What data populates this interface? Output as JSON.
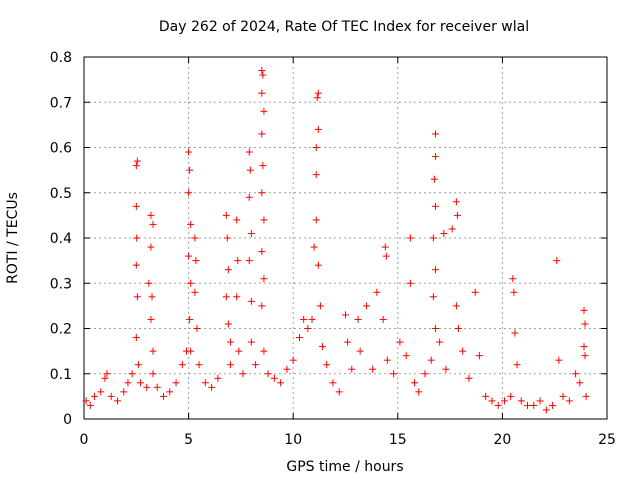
{
  "chart_data": {
    "type": "scatter",
    "title": "Day 262 of 2024, Rate Of TEC Index for receiver wlal",
    "xlabel": "GPS time / hours",
    "ylabel": "ROTI / TECUs",
    "xlim": [
      0,
      25
    ],
    "ylim": [
      0,
      0.8
    ],
    "xticks": [
      0,
      5,
      10,
      15,
      20,
      25
    ],
    "yticks": [
      0,
      0.1,
      0.2,
      0.3,
      0.4,
      0.5,
      0.6,
      0.7,
      0.8
    ],
    "grid": true,
    "marker": "+",
    "color": "#ff0000",
    "series": [
      {
        "name": "ROTI",
        "points": [
          [
            0.1,
            0.04
          ],
          [
            0.3,
            0.03
          ],
          [
            0.5,
            0.05
          ],
          [
            0.8,
            0.06
          ],
          [
            1.0,
            0.09
          ],
          [
            1.1,
            0.1
          ],
          [
            1.3,
            0.05
          ],
          [
            1.6,
            0.04
          ],
          [
            1.9,
            0.06
          ],
          [
            2.1,
            0.08
          ],
          [
            2.3,
            0.1
          ],
          [
            2.5,
            0.56
          ],
          [
            2.55,
            0.57
          ],
          [
            2.5,
            0.47
          ],
          [
            2.52,
            0.4
          ],
          [
            2.5,
            0.34
          ],
          [
            2.55,
            0.27
          ],
          [
            2.5,
            0.18
          ],
          [
            2.6,
            0.12
          ],
          [
            2.7,
            0.08
          ],
          [
            3.0,
            0.07
          ],
          [
            3.2,
            0.45
          ],
          [
            3.3,
            0.43
          ],
          [
            3.2,
            0.38
          ],
          [
            3.1,
            0.3
          ],
          [
            3.25,
            0.27
          ],
          [
            3.2,
            0.22
          ],
          [
            3.3,
            0.15
          ],
          [
            3.3,
            0.1
          ],
          [
            3.5,
            0.07
          ],
          [
            3.8,
            0.05
          ],
          [
            4.1,
            0.06
          ],
          [
            4.4,
            0.08
          ],
          [
            4.7,
            0.12
          ],
          [
            4.9,
            0.15
          ],
          [
            5.0,
            0.59
          ],
          [
            5.05,
            0.55
          ],
          [
            5.0,
            0.5
          ],
          [
            5.1,
            0.43
          ],
          [
            5.0,
            0.36
          ],
          [
            5.1,
            0.3
          ],
          [
            5.05,
            0.22
          ],
          [
            5.1,
            0.15
          ],
          [
            5.3,
            0.4
          ],
          [
            5.35,
            0.35
          ],
          [
            5.3,
            0.28
          ],
          [
            5.4,
            0.2
          ],
          [
            5.5,
            0.12
          ],
          [
            5.8,
            0.08
          ],
          [
            6.1,
            0.07
          ],
          [
            6.4,
            0.09
          ],
          [
            6.8,
            0.45
          ],
          [
            6.85,
            0.4
          ],
          [
            6.9,
            0.33
          ],
          [
            6.8,
            0.27
          ],
          [
            6.9,
            0.21
          ],
          [
            7.0,
            0.17
          ],
          [
            7.0,
            0.12
          ],
          [
            7.3,
            0.44
          ],
          [
            7.35,
            0.35
          ],
          [
            7.3,
            0.27
          ],
          [
            7.4,
            0.15
          ],
          [
            7.6,
            0.1
          ],
          [
            7.9,
            0.59
          ],
          [
            7.95,
            0.55
          ],
          [
            7.9,
            0.49
          ],
          [
            8.0,
            0.41
          ],
          [
            7.9,
            0.35
          ],
          [
            8.0,
            0.26
          ],
          [
            8.0,
            0.17
          ],
          [
            8.2,
            0.12
          ],
          [
            8.5,
            0.77
          ],
          [
            8.55,
            0.76
          ],
          [
            8.5,
            0.72
          ],
          [
            8.6,
            0.68
          ],
          [
            8.5,
            0.63
          ],
          [
            8.55,
            0.56
          ],
          [
            8.5,
            0.5
          ],
          [
            8.6,
            0.44
          ],
          [
            8.5,
            0.37
          ],
          [
            8.6,
            0.31
          ],
          [
            8.5,
            0.25
          ],
          [
            8.6,
            0.15
          ],
          [
            8.8,
            0.1
          ],
          [
            9.1,
            0.09
          ],
          [
            9.4,
            0.08
          ],
          [
            9.7,
            0.11
          ],
          [
            10.0,
            0.13
          ],
          [
            10.3,
            0.18
          ],
          [
            10.5,
            0.22
          ],
          [
            10.7,
            0.2
          ],
          [
            10.9,
            0.22
          ],
          [
            11.0,
            0.38
          ],
          [
            11.1,
            0.44
          ],
          [
            11.1,
            0.54
          ],
          [
            11.2,
            0.64
          ],
          [
            11.15,
            0.71
          ],
          [
            11.2,
            0.72
          ],
          [
            11.1,
            0.6
          ],
          [
            11.2,
            0.34
          ],
          [
            11.3,
            0.25
          ],
          [
            11.4,
            0.16
          ],
          [
            11.6,
            0.12
          ],
          [
            11.9,
            0.08
          ],
          [
            12.2,
            0.06
          ],
          [
            12.5,
            0.23
          ],
          [
            12.6,
            0.17
          ],
          [
            12.8,
            0.11
          ],
          [
            13.1,
            0.22
          ],
          [
            13.2,
            0.15
          ],
          [
            13.5,
            0.25
          ],
          [
            13.8,
            0.11
          ],
          [
            14.0,
            0.28
          ],
          [
            14.3,
            0.22
          ],
          [
            14.4,
            0.38
          ],
          [
            14.45,
            0.36
          ],
          [
            14.5,
            0.13
          ],
          [
            14.8,
            0.1
          ],
          [
            15.1,
            0.17
          ],
          [
            15.4,
            0.14
          ],
          [
            15.6,
            0.4
          ],
          [
            15.6,
            0.3
          ],
          [
            15.8,
            0.08
          ],
          [
            16.0,
            0.06
          ],
          [
            16.3,
            0.1
          ],
          [
            16.6,
            0.13
          ],
          [
            16.8,
            0.63
          ],
          [
            16.8,
            0.58
          ],
          [
            16.75,
            0.53
          ],
          [
            16.8,
            0.47
          ],
          [
            16.7,
            0.4
          ],
          [
            16.8,
            0.33
          ],
          [
            16.7,
            0.27
          ],
          [
            16.8,
            0.2
          ],
          [
            17.0,
            0.17
          ],
          [
            17.2,
            0.41
          ],
          [
            17.3,
            0.11
          ],
          [
            17.6,
            0.42
          ],
          [
            17.8,
            0.48
          ],
          [
            17.85,
            0.45
          ],
          [
            17.8,
            0.25
          ],
          [
            17.9,
            0.2
          ],
          [
            18.1,
            0.15
          ],
          [
            18.4,
            0.09
          ],
          [
            18.7,
            0.28
          ],
          [
            18.9,
            0.14
          ],
          [
            19.2,
            0.05
          ],
          [
            19.5,
            0.04
          ],
          [
            19.8,
            0.03
          ],
          [
            20.1,
            0.04
          ],
          [
            20.4,
            0.05
          ],
          [
            20.5,
            0.31
          ],
          [
            20.55,
            0.28
          ],
          [
            20.6,
            0.19
          ],
          [
            20.7,
            0.12
          ],
          [
            20.9,
            0.04
          ],
          [
            21.2,
            0.03
          ],
          [
            21.5,
            0.03
          ],
          [
            21.8,
            0.04
          ],
          [
            22.1,
            0.02
          ],
          [
            22.4,
            0.03
          ],
          [
            22.6,
            0.35
          ],
          [
            22.7,
            0.13
          ],
          [
            22.9,
            0.05
          ],
          [
            23.2,
            0.04
          ],
          [
            23.5,
            0.1
          ],
          [
            23.7,
            0.08
          ],
          [
            23.9,
            0.24
          ],
          [
            23.95,
            0.21
          ],
          [
            23.9,
            0.16
          ],
          [
            23.95,
            0.14
          ],
          [
            24.0,
            0.05
          ]
        ]
      }
    ]
  }
}
